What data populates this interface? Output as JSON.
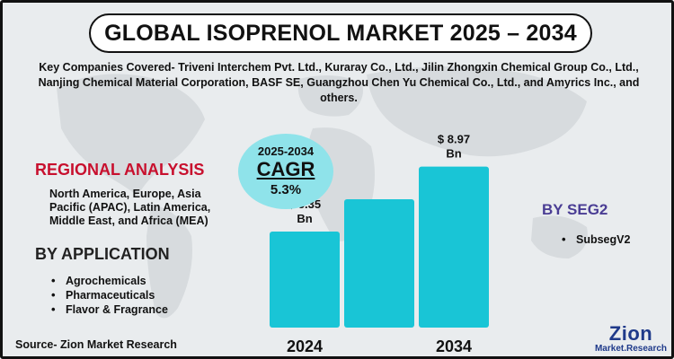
{
  "title": "GLOBAL ISOPRENOL MARKET 2025 – 2034",
  "companies_line1": "Key Companies Covered- Triveni Interchem Pvt. Ltd., Kuraray Co., Ltd., Jilin Zhongxin Chemical Group Co., Ltd.,",
  "companies_line2": "Nanjing Chemical Material Corporation, BASF SE, Guangzhou Chen Yu Chemical Co., Ltd., and Amyrics Inc., and",
  "companies_line3": "others.",
  "cagr": {
    "years": "2025-2034",
    "label": "CAGR",
    "value": "5.3%"
  },
  "regional": {
    "title": "REGIONAL ANALYSIS",
    "text": "North America, Europe, Asia Pacific (APAC), Latin America, Middle East, and Africa (MEA)"
  },
  "application": {
    "title": "BY APPLICATION",
    "items": [
      "Agrochemicals",
      "Pharmaceuticals",
      "Flavor & Fragrance"
    ]
  },
  "seg2": {
    "title": "BY SEG2",
    "items": [
      "SubsegV2"
    ]
  },
  "source": "Source- Zion Market Research",
  "logo": {
    "top": "Zion",
    "bottom": "Market.Research"
  },
  "colors": {
    "bar": "#19c5d6",
    "regional_title": "#c8102e",
    "seg_title": "#4a3d94",
    "cagr_circle": "#8fe3ea"
  },
  "chart_data": {
    "type": "bar",
    "categories": [
      "2024",
      "",
      "2034"
    ],
    "values": [
      5.35,
      7.15,
      8.97
    ],
    "data_labels": [
      "$ 5.35 Bn",
      "",
      "$ 8.97 Bn"
    ],
    "x_tick_labels": [
      "2024",
      "",
      "2034"
    ],
    "ylim": [
      0,
      9.5
    ],
    "grid": false,
    "legend": "none"
  }
}
